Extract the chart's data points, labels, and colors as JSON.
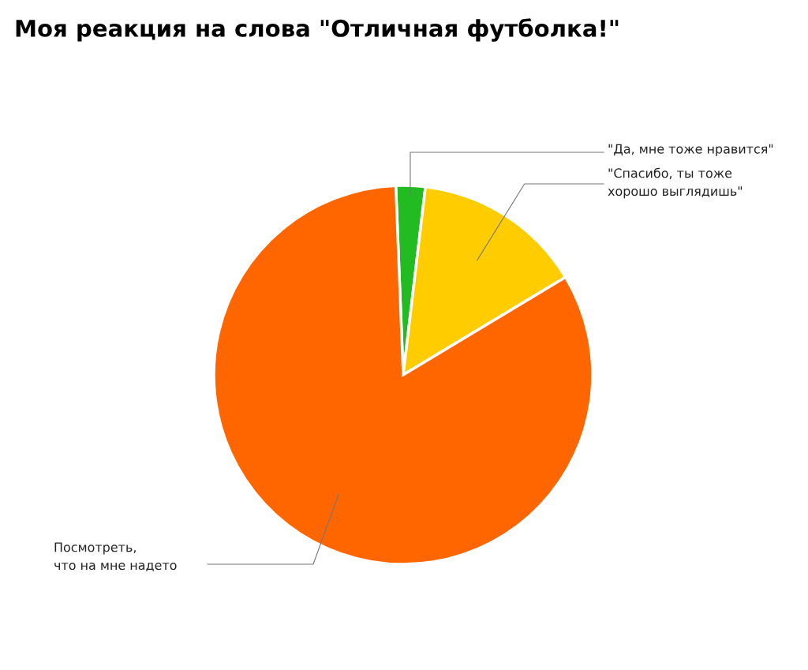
{
  "chart_data": {
    "type": "pie",
    "title": "Моя реакция на слова \"Отличная футболка!\"",
    "categories": [
      "\"Да, мне тоже нравится\"",
      "\"Спасибо, ты тоже\nхорошо выглядишь\"",
      "Посмотреть,\nчто на мне надето"
    ],
    "values": [
      2.5,
      14.5,
      83
    ],
    "colors": [
      "#22bb22",
      "#ffcc00",
      "#ff6600"
    ],
    "legend": false
  }
}
